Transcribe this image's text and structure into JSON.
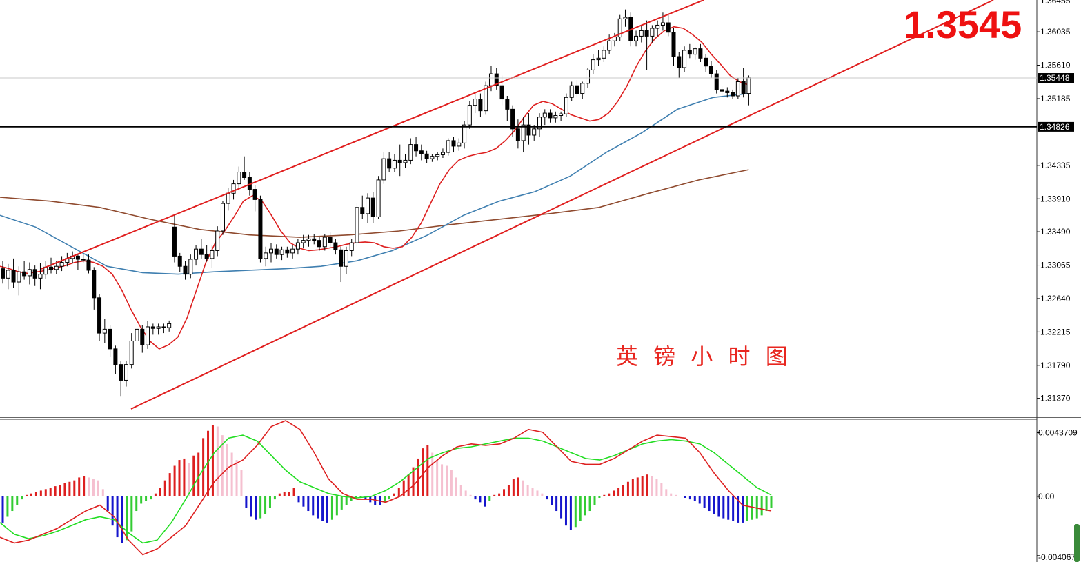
{
  "chart_data": {
    "type": "candlestick",
    "annotation": "英 镑 小 时 图",
    "big_price": "1.3545",
    "colors": {
      "fast_ma": "#dd1f1f",
      "mid_ma": "#3f7fb0",
      "slow_ma": "#8f4a2e",
      "channel": "#e01e1e",
      "hist_up_strong": "#dd1f1f",
      "hist_up_weak": "#f5c0d0",
      "hist_down_strong": "#1515cc",
      "hist_down_weak": "#33cc33",
      "macd_line": "#dd1f1f",
      "signal_line": "#22dd22"
    },
    "price_axis": {
      "ticks": [
        "1.36035",
        "1.35610",
        "1.35185",
        "1.34335",
        "1.33910",
        "1.33490",
        "1.33065",
        "1.32640",
        "1.32215",
        "1.31790",
        "1.31370"
      ],
      "tick_values": [
        1.36035,
        1.3561,
        1.35185,
        1.34335,
        1.3391,
        1.3349,
        1.33065,
        1.3264,
        1.32215,
        1.3179,
        1.3137
      ],
      "top_partial": "1.36455",
      "range": [
        1.3113,
        1.3644
      ]
    },
    "current_price": {
      "label": "1.35448",
      "value": 1.35448
    },
    "support_line": {
      "label": "1.34826",
      "value": 1.34826
    },
    "channel": {
      "upper": [
        [
          5,
          1.3314
        ],
        [
          95,
          1.3647
        ]
      ],
      "lower": [
        [
          0,
          1.3134
        ],
        [
          95,
          1.3512
        ]
      ]
    },
    "candles": [
      [
        1.3302,
        1.3312,
        1.3283,
        1.329
      ],
      [
        1.329,
        1.3308,
        1.3276,
        1.33
      ],
      [
        1.33,
        1.3315,
        1.3278,
        1.3285
      ],
      [
        1.3285,
        1.3305,
        1.3268,
        1.3298
      ],
      [
        1.3298,
        1.3312,
        1.3288,
        1.3293
      ],
      [
        1.3293,
        1.331,
        1.3282,
        1.3301
      ],
      [
        1.3301,
        1.3306,
        1.328,
        1.329
      ],
      [
        1.329,
        1.3309,
        1.3276,
        1.3295
      ],
      [
        1.3295,
        1.3312,
        1.3289,
        1.3304
      ],
      [
        1.3304,
        1.3316,
        1.3296,
        1.3301
      ],
      [
        1.3301,
        1.3312,
        1.3295,
        1.3305
      ],
      [
        1.3305,
        1.3318,
        1.3299,
        1.331
      ],
      [
        1.331,
        1.3322,
        1.3305,
        1.3315
      ],
      [
        1.3315,
        1.3324,
        1.3309,
        1.3318
      ],
      [
        1.3318,
        1.3321,
        1.33,
        1.3314
      ],
      [
        1.3314,
        1.3321,
        1.331,
        1.3313
      ],
      [
        1.3313,
        1.332,
        1.3296,
        1.33
      ],
      [
        1.33,
        1.3304,
        1.325,
        1.3265
      ],
      [
        1.3265,
        1.327,
        1.321,
        1.322
      ],
      [
        1.322,
        1.3238,
        1.3207,
        1.3225
      ],
      [
        1.3225,
        1.323,
        1.319,
        1.32
      ],
      [
        1.32,
        1.3204,
        1.3168,
        1.318
      ],
      [
        1.318,
        1.3184,
        1.314,
        1.316
      ],
      [
        1.316,
        1.3185,
        1.3152,
        1.318
      ],
      [
        1.318,
        1.322,
        1.3175,
        1.321
      ],
      [
        1.321,
        1.325,
        1.3195,
        1.3225
      ],
      [
        1.3225,
        1.323,
        1.3195,
        1.3205
      ],
      [
        1.3205,
        1.3235,
        1.32,
        1.3228
      ],
      [
        1.3228,
        1.3232,
        1.3218,
        1.3226
      ],
      [
        1.3226,
        1.3232,
        1.3218,
        1.3228
      ],
      [
        1.3228,
        1.3232,
        1.322,
        1.3227
      ],
      [
        1.3227,
        1.3236,
        1.3222,
        1.3232
      ],
      [
        1.3355,
        1.337,
        1.331,
        1.3318
      ],
      [
        1.3318,
        1.3322,
        1.3298,
        1.3305
      ],
      [
        1.3305,
        1.3312,
        1.3288,
        1.3295
      ],
      [
        1.3295,
        1.332,
        1.329,
        1.3314
      ],
      [
        1.3314,
        1.3332,
        1.3306,
        1.3327
      ],
      [
        1.3327,
        1.334,
        1.3315,
        1.332
      ],
      [
        1.332,
        1.3332,
        1.3311,
        1.3315
      ],
      [
        1.3315,
        1.3332,
        1.3303,
        1.3325
      ],
      [
        1.3325,
        1.3356,
        1.3318,
        1.335
      ],
      [
        1.335,
        1.3388,
        1.3345,
        1.3385
      ],
      [
        1.3385,
        1.3405,
        1.3376,
        1.3398
      ],
      [
        1.3398,
        1.3415,
        1.339,
        1.341
      ],
      [
        1.341,
        1.3432,
        1.3402,
        1.3425
      ],
      [
        1.3425,
        1.3445,
        1.3415,
        1.3418
      ],
      [
        1.3418,
        1.3425,
        1.3395,
        1.3403
      ],
      [
        1.3403,
        1.3408,
        1.3375,
        1.339
      ],
      [
        1.339,
        1.3395,
        1.331,
        1.3315
      ],
      [
        1.3315,
        1.333,
        1.3305,
        1.3322
      ],
      [
        1.3322,
        1.3335,
        1.331,
        1.3327
      ],
      [
        1.3327,
        1.3333,
        1.3315,
        1.332
      ],
      [
        1.332,
        1.333,
        1.3313,
        1.3326
      ],
      [
        1.3326,
        1.333,
        1.3316,
        1.3322
      ],
      [
        1.3322,
        1.3332,
        1.3315,
        1.3327
      ],
      [
        1.3327,
        1.334,
        1.332,
        1.3335
      ],
      [
        1.3335,
        1.3345,
        1.3328,
        1.3338
      ],
      [
        1.3338,
        1.3345,
        1.333,
        1.334
      ],
      [
        1.334,
        1.3346,
        1.3333,
        1.3338
      ],
      [
        1.3338,
        1.3342,
        1.3325,
        1.333
      ],
      [
        1.333,
        1.3346,
        1.3325,
        1.3342
      ],
      [
        1.3342,
        1.3348,
        1.333,
        1.3335
      ],
      [
        1.3335,
        1.334,
        1.332,
        1.3326
      ],
      [
        1.3326,
        1.333,
        1.3285,
        1.3305
      ],
      [
        1.3305,
        1.333,
        1.3295,
        1.3325
      ],
      [
        1.3325,
        1.334,
        1.3318,
        1.3335
      ],
      [
        1.3335,
        1.3385,
        1.333,
        1.338
      ],
      [
        1.338,
        1.3395,
        1.3365,
        1.3372
      ],
      [
        1.3372,
        1.3398,
        1.336,
        1.3392
      ],
      [
        1.3392,
        1.34,
        1.336,
        1.3368
      ],
      [
        1.3368,
        1.342,
        1.3365,
        1.3415
      ],
      [
        1.3415,
        1.345,
        1.341,
        1.3442
      ],
      [
        1.3442,
        1.345,
        1.3425,
        1.343
      ],
      [
        1.343,
        1.3448,
        1.3425,
        1.344
      ],
      [
        1.344,
        1.346,
        1.342,
        1.3437
      ],
      [
        1.3437,
        1.3448,
        1.343,
        1.344
      ],
      [
        1.344,
        1.3468,
        1.3435,
        1.346
      ],
      [
        1.346,
        1.347,
        1.3445,
        1.3452
      ],
      [
        1.3452,
        1.346,
        1.344,
        1.3448
      ],
      [
        1.3448,
        1.3452,
        1.3436,
        1.3442
      ],
      [
        1.3442,
        1.3448,
        1.3438,
        1.3445
      ],
      [
        1.3445,
        1.345,
        1.344,
        1.3447
      ],
      [
        1.3447,
        1.3455,
        1.3443,
        1.345
      ],
      [
        1.345,
        1.3468,
        1.3446,
        1.3465
      ],
      [
        1.3465,
        1.347,
        1.345,
        1.3458
      ],
      [
        1.3458,
        1.3468,
        1.3452,
        1.3462
      ],
      [
        1.3462,
        1.349,
        1.3455,
        1.3485
      ],
      [
        1.3485,
        1.3515,
        1.348,
        1.351
      ],
      [
        1.351,
        1.3525,
        1.35,
        1.3518
      ],
      [
        1.3518,
        1.3525,
        1.3495,
        1.3503
      ],
      [
        1.3503,
        1.354,
        1.3498,
        1.3535
      ],
      [
        1.3535,
        1.356,
        1.3528,
        1.355
      ],
      [
        1.355,
        1.3558,
        1.353,
        1.3535
      ],
      [
        1.3535,
        1.3548,
        1.351,
        1.3518
      ],
      [
        1.3518,
        1.3522,
        1.349,
        1.3505
      ],
      [
        1.3505,
        1.351,
        1.347,
        1.348
      ],
      [
        1.348,
        1.3492,
        1.3455,
        1.3465
      ],
      [
        1.3465,
        1.3495,
        1.345,
        1.3485
      ],
      [
        1.3485,
        1.35,
        1.346,
        1.3472
      ],
      [
        1.3472,
        1.3485,
        1.3465,
        1.348
      ],
      [
        1.348,
        1.35,
        1.347,
        1.3495
      ],
      [
        1.3495,
        1.3505,
        1.3485,
        1.35
      ],
      [
        1.35,
        1.3505,
        1.3488,
        1.3494
      ],
      [
        1.3494,
        1.3502,
        1.3488,
        1.3497
      ],
      [
        1.3497,
        1.3502,
        1.349,
        1.3499
      ],
      [
        1.3499,
        1.3525,
        1.3495,
        1.352
      ],
      [
        1.352,
        1.354,
        1.3515,
        1.3535
      ],
      [
        1.3535,
        1.3542,
        1.352,
        1.3525
      ],
      [
        1.3525,
        1.354,
        1.3518,
        1.3538
      ],
      [
        1.3538,
        1.3558,
        1.3532,
        1.3555
      ],
      [
        1.3555,
        1.3575,
        1.355,
        1.3568
      ],
      [
        1.3568,
        1.358,
        1.356,
        1.357
      ],
      [
        1.357,
        1.3585,
        1.3565,
        1.358
      ],
      [
        1.358,
        1.36,
        1.3575,
        1.3592
      ],
      [
        1.3592,
        1.3602,
        1.3585,
        1.3597
      ],
      [
        1.3597,
        1.3625,
        1.3592,
        1.362
      ],
      [
        1.362,
        1.3632,
        1.361,
        1.3622
      ],
      [
        1.3622,
        1.3628,
        1.3585,
        1.3592
      ],
      [
        1.3592,
        1.3605,
        1.3585,
        1.3598
      ],
      [
        1.3598,
        1.3612,
        1.359,
        1.3605
      ],
      [
        1.3605,
        1.3618,
        1.3555,
        1.3598
      ],
      [
        1.3598,
        1.3612,
        1.359,
        1.3608
      ],
      [
        1.3608,
        1.3618,
        1.3598,
        1.3612
      ],
      [
        1.3612,
        1.3628,
        1.3605,
        1.3615
      ],
      [
        1.3615,
        1.3625,
        1.3598,
        1.3603
      ],
      [
        1.3603,
        1.3608,
        1.356,
        1.3572
      ],
      [
        1.3572,
        1.3578,
        1.3545,
        1.3558
      ],
      [
        1.3558,
        1.3585,
        1.3552,
        1.358
      ],
      [
        1.358,
        1.3588,
        1.357,
        1.3575
      ],
      [
        1.3575,
        1.3584,
        1.3568,
        1.3582
      ],
      [
        1.3582,
        1.3588,
        1.3565,
        1.357
      ],
      [
        1.357,
        1.3575,
        1.3552,
        1.356
      ],
      [
        1.356,
        1.3566,
        1.3545,
        1.355
      ],
      [
        1.355,
        1.3555,
        1.3525,
        1.353
      ],
      [
        1.353,
        1.3535,
        1.3522,
        1.3528
      ],
      [
        1.3528,
        1.3533,
        1.352,
        1.3526
      ],
      [
        1.3526,
        1.353,
        1.3518,
        1.3522
      ],
      [
        1.3522,
        1.3545,
        1.3518,
        1.354
      ],
      [
        1.354,
        1.3558,
        1.352,
        1.3525
      ],
      [
        1.3525,
        1.3548,
        1.351,
        1.3545
      ]
    ],
    "fast_ma": [
      1.3305,
      1.3302,
      1.3298,
      1.3296,
      1.3298,
      1.33,
      1.3303,
      1.3306,
      1.331,
      1.3312,
      1.331,
      1.3305,
      1.3295,
      1.3275,
      1.325,
      1.3228,
      1.321,
      1.32,
      1.3205,
      1.3215,
      1.324,
      1.3275,
      1.331,
      1.3335,
      1.335,
      1.3368,
      1.3388,
      1.3395,
      1.3388,
      1.337,
      1.335,
      1.3335,
      1.3328,
      1.3325,
      1.3326,
      1.3328,
      1.333,
      1.3333,
      1.3335,
      1.3336,
      1.3335,
      1.333,
      1.3328,
      1.333,
      1.3342,
      1.336,
      1.3385,
      1.341,
      1.3428,
      1.344,
      1.3445,
      1.3448,
      1.345,
      1.3455,
      1.3465,
      1.3478,
      1.3495,
      1.351,
      1.3515,
      1.3512,
      1.3505,
      1.3498,
      1.3494,
      1.349,
      1.3492,
      1.35,
      1.3515,
      1.3535,
      1.356,
      1.358,
      1.3595,
      1.3605,
      1.361,
      1.3608,
      1.36,
      1.359,
      1.3575,
      1.3562,
      1.3548,
      1.354,
      1.3536
    ],
    "fast_ma_x": [
      0,
      1.2,
      2.4,
      3.6,
      4.8,
      6,
      7.2,
      8.4,
      9.6,
      10.8,
      12,
      12.6,
      13.2,
      13.8,
      14.4,
      15,
      15.6,
      16.2,
      16.8,
      17.4,
      18,
      18.6,
      19.2,
      19.8,
      20.4,
      21,
      21.6,
      22.2,
      22.8,
      23.4,
      24,
      24.6,
      25.2,
      25.8,
      26.4,
      27,
      27.6,
      28.2,
      28.8,
      29.4,
      30,
      30.6,
      31.2,
      31.8,
      32.4,
      33,
      33.6,
      34.2,
      34.8,
      35.4,
      36,
      36.6,
      37.2,
      37.8,
      38.4,
      39,
      39.6,
      40.2,
      40.8,
      41.4,
      42,
      42.6,
      43.2,
      43.8,
      44.4,
      45,
      45.6,
      46.2,
      46.8,
      47.4,
      48,
      48.6,
      49.2,
      49.8,
      50.4,
      51,
      51.6,
      52.2,
      52.8,
      53.4,
      54
    ],
    "mid_ma": [
      1.337,
      1.3355,
      1.333,
      1.3305,
      1.3297,
      1.3295,
      1.3298,
      1.33,
      1.3302,
      1.3305,
      1.3312,
      1.3325,
      1.3345,
      1.337,
      1.3388,
      1.34,
      1.342,
      1.345,
      1.3475,
      1.3505,
      1.352,
      1.3525
    ],
    "slow_ma": [
      1.3393,
      1.3388,
      1.338,
      1.3365,
      1.3352,
      1.3345,
      1.3342,
      1.3345,
      1.335,
      1.3358,
      1.3365,
      1.3372,
      1.338,
      1.3398,
      1.3415,
      1.3428
    ],
    "macd": {
      "ticks": [
        "0.0043709",
        "0.00",
        "-0.004067"
      ],
      "tick_values": [
        0.0043709,
        0.0,
        -0.004067
      ],
      "range": [
        -0.0045,
        0.0052
      ],
      "histogram": [
        -0.0018,
        -0.0014,
        -0.001,
        -0.0006,
        -0.0002,
        0.0001,
        0.0002,
        0.0003,
        0.0004,
        0.0005,
        0.0006,
        0.0007,
        0.0008,
        0.0009,
        0.001,
        0.0011,
        0.0013,
        0.0014,
        0.0013,
        0.0012,
        0.0011,
        0.0005,
        -0.001,
        -0.002,
        -0.0028,
        -0.0032,
        -0.003,
        -0.0024,
        -0.001,
        -0.0005,
        -0.0003,
        -0.0002,
        0.0002,
        0.0006,
        0.0011,
        0.0016,
        0.0021,
        0.0025,
        0.0026,
        0.0023,
        0.0028,
        0.003,
        0.004,
        0.0045,
        0.0049,
        0.0048,
        0.0042,
        0.0036,
        0.003,
        0.0025,
        0.0018,
        -0.0008,
        -0.0014,
        -0.0016,
        -0.0015,
        -0.0012,
        -0.0008,
        -0.0002,
        0.0002,
        0.0003,
        0.0003,
        0.0006,
        -0.0004,
        -0.0007,
        -0.001,
        -0.0013,
        -0.0015,
        -0.0017,
        -0.0018,
        -0.0016,
        -0.0013,
        -0.0009,
        -0.0006,
        -0.0003,
        -0.0002,
        -0.0001,
        -0.0002,
        -0.0004,
        -0.0006,
        -0.0006,
        -0.0004,
        -0.0002,
        0.0002,
        0.0006,
        0.0011,
        0.0015,
        0.002,
        0.0026,
        0.0033,
        0.0035,
        0.003,
        0.0025,
        0.0022,
        0.0021,
        0.0018,
        0.0013,
        0.0008,
        0.0004,
        0.0001,
        -0.0002,
        -0.0004,
        -0.0007,
        -0.0003,
        0.0001,
        0.0002,
        0.0005,
        0.0008,
        0.0012,
        0.0013,
        0.0011,
        0.0008,
        0.0006,
        0.0004,
        0.0002,
        -0.0002,
        -0.0006,
        -0.001,
        -0.0015,
        -0.002,
        -0.0023,
        -0.0021,
        -0.0017,
        -0.0013,
        -0.001,
        -0.0006,
        -0.0001,
        0.0001,
        0.0002,
        0.0004,
        0.0006,
        0.0008,
        0.001,
        0.0012,
        0.0013,
        0.0014,
        0.0015,
        0.0014,
        0.0012,
        0.0009,
        0.0005,
        0.0002,
        0.0001,
        0.0,
        -0.0001,
        -0.0002,
        -0.0003,
        -0.0005,
        -0.0008,
        -0.001,
        -0.0012,
        -0.0014,
        -0.0015,
        -0.0016,
        -0.0017,
        -0.0018,
        -0.0018,
        -0.0017,
        -0.0016,
        -0.0015,
        -0.0013,
        -0.001,
        -0.0008
      ],
      "macd_line": [
        -0.0028,
        -0.0032,
        -0.003,
        -0.0026,
        -0.0022,
        -0.0016,
        -0.001,
        -0.0006,
        -0.0014,
        -0.003,
        -0.004,
        -0.0036,
        -0.0028,
        -0.002,
        -0.0005,
        0.001,
        0.002,
        0.0025,
        0.0035,
        0.0048,
        0.0052,
        0.0046,
        0.003,
        0.0012,
        0.0002,
        -0.0002,
        -0.0002,
        -0.0004,
        0.0,
        0.0008,
        0.002,
        0.0028,
        0.0034,
        0.0036,
        0.0035,
        0.0036,
        0.004,
        0.0046,
        0.0044,
        0.0034,
        0.0024,
        0.0022,
        0.0022,
        0.0026,
        0.0032,
        0.0038,
        0.0042,
        0.0041,
        0.004,
        0.003,
        0.0016,
        0.0004,
        -0.0006,
        -0.0008,
        -0.001
      ],
      "signal_line": [
        -0.0018,
        -0.0026,
        -0.0029,
        -0.0027,
        -0.0024,
        -0.002,
        -0.0016,
        -0.0014,
        -0.0016,
        -0.0025,
        -0.0032,
        -0.003,
        -0.0018,
        -0.0002,
        0.0015,
        0.003,
        0.004,
        0.0042,
        0.0038,
        0.0028,
        0.0018,
        0.001,
        0.0006,
        0.0002,
        0.0,
        -0.0001,
        0.0,
        0.0004,
        0.001,
        0.0018,
        0.0026,
        0.003,
        0.0033,
        0.0034,
        0.0036,
        0.0038,
        0.004,
        0.004,
        0.0038,
        0.0034,
        0.003,
        0.0026,
        0.0025,
        0.0028,
        0.0032,
        0.0036,
        0.0038,
        0.0039,
        0.0038,
        0.0036,
        0.003,
        0.0022,
        0.0014,
        0.0006,
        0.0001
      ]
    }
  }
}
